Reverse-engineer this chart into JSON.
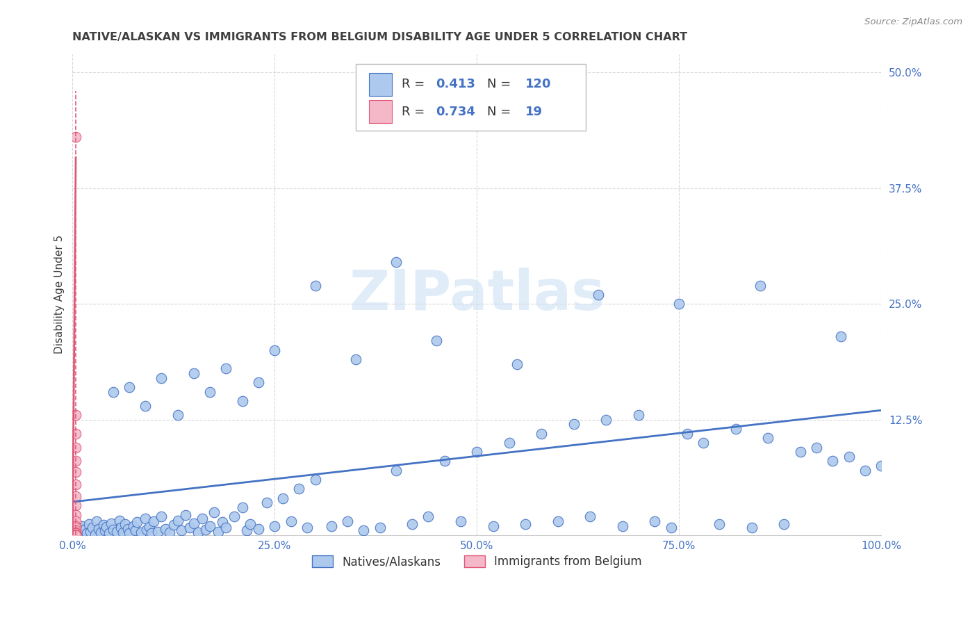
{
  "title": "NATIVE/ALASKAN VS IMMIGRANTS FROM BELGIUM DISABILITY AGE UNDER 5 CORRELATION CHART",
  "source": "Source: ZipAtlas.com",
  "ylabel": "Disability Age Under 5",
  "legend_label1": "Natives/Alaskans",
  "legend_label2": "Immigrants from Belgium",
  "R1": 0.413,
  "N1": 120,
  "R2": 0.734,
  "N2": 19,
  "color_blue": "#adc9ed",
  "color_pink": "#f4b8c8",
  "line_blue": "#4472c4",
  "line_pink": "#e05878",
  "text_blue": "#4472c4",
  "text_dark": "#333333",
  "axis_tick_color": "#4472c4",
  "title_color": "#404040",
  "grid_color": "#d8d8d8",
  "watermark_color": "#c8dff5",
  "xlim": [
    0.0,
    1.0
  ],
  "ylim": [
    0.0,
    0.52
  ],
  "blue_line_y0": 0.036,
  "blue_line_y1": 0.135,
  "pink_line_x": 0.004,
  "pink_line_y0": 0.0,
  "pink_line_y1": 0.48,
  "native_x": [
    0.005,
    0.007,
    0.01,
    0.012,
    0.015,
    0.018,
    0.02,
    0.022,
    0.025,
    0.028,
    0.03,
    0.032,
    0.035,
    0.038,
    0.04,
    0.042,
    0.045,
    0.048,
    0.05,
    0.055,
    0.058,
    0.06,
    0.062,
    0.065,
    0.068,
    0.07,
    0.075,
    0.078,
    0.08,
    0.085,
    0.09,
    0.092,
    0.095,
    0.098,
    0.1,
    0.105,
    0.11,
    0.115,
    0.12,
    0.125,
    0.13,
    0.135,
    0.14,
    0.145,
    0.15,
    0.155,
    0.16,
    0.165,
    0.17,
    0.175,
    0.18,
    0.185,
    0.19,
    0.2,
    0.21,
    0.215,
    0.22,
    0.23,
    0.24,
    0.25,
    0.26,
    0.27,
    0.28,
    0.29,
    0.3,
    0.32,
    0.34,
    0.36,
    0.38,
    0.4,
    0.42,
    0.44,
    0.46,
    0.48,
    0.5,
    0.52,
    0.54,
    0.56,
    0.58,
    0.6,
    0.62,
    0.64,
    0.66,
    0.68,
    0.7,
    0.72,
    0.74,
    0.76,
    0.78,
    0.8,
    0.82,
    0.84,
    0.86,
    0.88,
    0.9,
    0.92,
    0.94,
    0.96,
    0.98,
    1.0,
    0.05,
    0.07,
    0.09,
    0.11,
    0.13,
    0.15,
    0.17,
    0.19,
    0.21,
    0.23,
    0.25,
    0.35,
    0.45,
    0.55,
    0.65,
    0.75,
    0.85,
    0.95,
    0.3,
    0.4
  ],
  "native_y": [
    0.005,
    0.008,
    0.003,
    0.01,
    0.006,
    0.002,
    0.012,
    0.004,
    0.008,
    0.001,
    0.015,
    0.007,
    0.003,
    0.011,
    0.005,
    0.009,
    0.002,
    0.013,
    0.006,
    0.004,
    0.016,
    0.008,
    0.003,
    0.012,
    0.007,
    0.002,
    0.01,
    0.005,
    0.014,
    0.003,
    0.018,
    0.006,
    0.009,
    0.002,
    0.015,
    0.004,
    0.02,
    0.007,
    0.003,
    0.011,
    0.016,
    0.005,
    0.022,
    0.008,
    0.013,
    0.003,
    0.018,
    0.006,
    0.01,
    0.025,
    0.004,
    0.014,
    0.008,
    0.02,
    0.03,
    0.005,
    0.012,
    0.007,
    0.035,
    0.01,
    0.04,
    0.015,
    0.05,
    0.008,
    0.06,
    0.01,
    0.015,
    0.005,
    0.008,
    0.07,
    0.012,
    0.02,
    0.08,
    0.015,
    0.09,
    0.01,
    0.1,
    0.012,
    0.11,
    0.015,
    0.12,
    0.02,
    0.125,
    0.01,
    0.13,
    0.015,
    0.008,
    0.11,
    0.1,
    0.012,
    0.115,
    0.008,
    0.105,
    0.012,
    0.09,
    0.095,
    0.08,
    0.085,
    0.07,
    0.075,
    0.155,
    0.16,
    0.14,
    0.17,
    0.13,
    0.175,
    0.155,
    0.18,
    0.145,
    0.165,
    0.2,
    0.19,
    0.21,
    0.185,
    0.26,
    0.25,
    0.27,
    0.215,
    0.27,
    0.295
  ],
  "belgium_x": [
    0.004,
    0.004,
    0.004,
    0.004,
    0.004,
    0.004,
    0.004,
    0.004,
    0.004,
    0.004,
    0.004,
    0.004,
    0.004,
    0.004,
    0.004,
    0.004,
    0.004,
    0.004,
    0.004
  ],
  "belgium_y": [
    0.43,
    0.13,
    0.11,
    0.095,
    0.08,
    0.068,
    0.055,
    0.042,
    0.032,
    0.022,
    0.015,
    0.01,
    0.008,
    0.005,
    0.003,
    0.002,
    0.001,
    0.0,
    0.0
  ]
}
